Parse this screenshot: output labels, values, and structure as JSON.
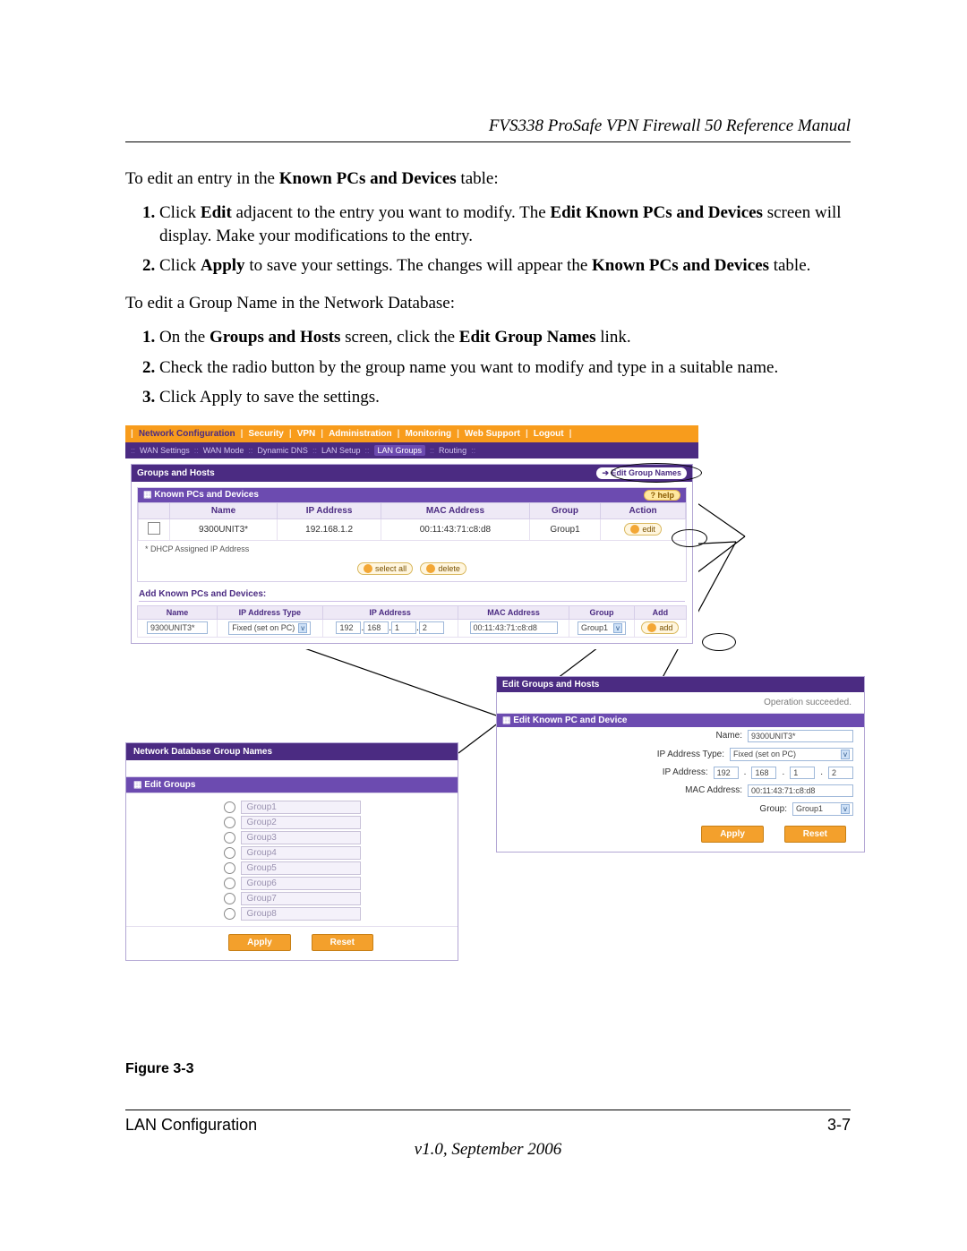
{
  "doc": {
    "header": "FVS338 ProSafe VPN Firewall 50 Reference Manual",
    "intro1_a": "To edit an entry in the ",
    "intro1_b": "Known PCs and Devices",
    "intro1_c": " table:",
    "step1a": "Click ",
    "step1b": "Edit",
    "step1c": " adjacent to the entry you want to modify. The ",
    "step1d": "Edit Known PCs and Devices",
    "step1e": " screen will display. Make your modifications to the entry.",
    "step2a": "Click ",
    "step2b": "Apply",
    "step2c": " to save your settings. The changes will appear the ",
    "step2d": "Known PCs and Devices",
    "step2e": " table.",
    "intro2": "To edit a Group Name in the Network Database:",
    "stepB1a": "On the ",
    "stepB1b": "Groups and Hosts",
    "stepB1c": " screen, click the ",
    "stepB1d": "Edit Group Names",
    "stepB1e": " link.",
    "stepB2": "Check the radio button by the group name you want to modify and type in a suitable name.",
    "stepB3": "Click Apply to save the settings.",
    "figcap": "Figure 3-3",
    "foot_section": "LAN Configuration",
    "foot_page": "3-7",
    "foot_version": "v1.0, September 2006"
  },
  "nav": {
    "items": [
      "Network Configuration",
      "Security",
      "VPN",
      "Administration",
      "Monitoring",
      "Web Support",
      "Logout"
    ],
    "sub": [
      "WAN Settings",
      "WAN Mode",
      "Dynamic DNS",
      "LAN Setup",
      "LAN Groups",
      "Routing"
    ]
  },
  "main": {
    "title": "Groups and Hosts",
    "edit_link": "Edit Group Names",
    "known_title": "Known PCs and Devices",
    "help": "help",
    "cols": [
      "Name",
      "IP Address",
      "MAC Address",
      "Group",
      "Action"
    ],
    "row": {
      "name": "9300UNIT3*",
      "ip": "192.168.1.2",
      "mac": "00:11:43:71:c8:d8",
      "group": "Group1",
      "edit": "edit"
    },
    "note": "* DHCP Assigned IP Address",
    "select_all": "select all",
    "delete": "delete",
    "add_title": "Add Known PCs and Devices:",
    "add_cols": [
      "Name",
      "IP Address Type",
      "IP Address",
      "MAC Address",
      "Group",
      "Add"
    ],
    "add": {
      "name": "9300UNIT3*",
      "type": "Fixed (set on PC)",
      "ip1": "192",
      "ip2": "168",
      "ip3": "1",
      "ip4": "2",
      "mac": "00:11:43:71:c8:d8",
      "group": "Group1",
      "btn": "add"
    }
  },
  "edit": {
    "title": "Edit Groups and Hosts",
    "msg": "Operation succeeded.",
    "sub": "Edit Known PC and Device",
    "name_l": "Name:",
    "name_v": "9300UNIT3*",
    "type_l": "IP Address Type:",
    "type_v": "Fixed (set on PC)",
    "ip_l": "IP Address:",
    "ip": {
      "a": "192",
      "b": "168",
      "c": "1",
      "d": "2"
    },
    "mac_l": "MAC Address:",
    "mac_v": "00:11:43:71:c8:d8",
    "grp_l": "Group:",
    "grp_v": "Group1",
    "apply": "Apply",
    "reset": "Reset"
  },
  "groups": {
    "title": "Network Database Group Names",
    "sub": "Edit Groups",
    "items": [
      "Group1",
      "Group2",
      "Group3",
      "Group4",
      "Group5",
      "Group6",
      "Group7",
      "Group8"
    ],
    "apply": "Apply",
    "reset": "Reset"
  }
}
